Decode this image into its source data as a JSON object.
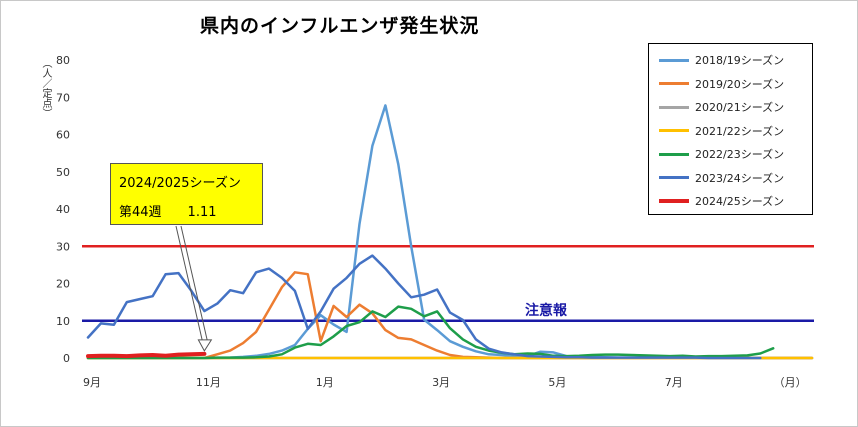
{
  "chart_data": {
    "type": "line",
    "title": "県内のインフルエンザ発生状況",
    "ylabel": "（人／定点）",
    "ylim": [
      0,
      80
    ],
    "y_ticks": [
      0,
      10,
      20,
      30,
      40,
      50,
      60,
      70,
      80
    ],
    "x_tick_labels": [
      "9月",
      "11月",
      "1月",
      "3月",
      "5月",
      "7月",
      "（月）"
    ],
    "x_tick_weeks": [
      0,
      9,
      18,
      27,
      36,
      45,
      54
    ],
    "week_count": 57,
    "grid": false,
    "legend_position": "top-right",
    "series": [
      {
        "name": "2018/19シーズン",
        "color": "#5b9bd5",
        "width": 2.5,
        "values": [
          0,
          0,
          0,
          0,
          0,
          0,
          0,
          0,
          0,
          0,
          0,
          0.1,
          0.3,
          0.6,
          1.1,
          2,
          3.5,
          7.8,
          11.5,
          9,
          7,
          36,
          57,
          67.8,
          52,
          30,
          10.3,
          7.5,
          4.5,
          3,
          1.8,
          1,
          0.8,
          0.6,
          0.5,
          1.7,
          1.5,
          0.5,
          0.3,
          0.2,
          0.2,
          0.1,
          0.1,
          0.1,
          0.1,
          0.1,
          0.1,
          0.1,
          0,
          0,
          0,
          0,
          0,
          0,
          0,
          0,
          0
        ]
      },
      {
        "name": "2019/20シーズン",
        "color": "#ed7d31",
        "width": 2.5,
        "values": [
          0,
          0,
          0,
          0,
          0,
          0,
          0,
          0,
          0,
          0,
          1,
          2,
          4,
          7,
          13,
          19,
          23,
          22.5,
          4.5,
          14,
          11,
          14.3,
          12,
          7.5,
          5.4,
          5,
          3.5,
          2,
          0.8,
          0.3,
          0.2,
          0.1,
          0,
          0,
          0,
          0,
          0,
          0,
          0,
          0,
          0,
          0,
          0,
          0,
          0,
          0,
          0,
          0,
          0,
          0,
          0,
          0,
          0,
          0,
          0,
          0,
          0
        ]
      },
      {
        "name": "2020/21シーズン",
        "color": "#a5a5a5",
        "width": 2.5,
        "values": [
          0,
          0,
          0,
          0,
          0,
          0,
          0,
          0,
          0,
          0,
          0,
          0,
          0,
          0,
          0,
          0,
          0,
          0,
          0,
          0,
          0,
          0,
          0,
          0,
          0,
          0,
          0,
          0,
          0,
          0,
          0,
          0,
          0,
          0,
          0,
          0,
          0,
          0,
          0,
          0,
          0,
          0,
          0,
          0,
          0,
          0,
          0,
          0,
          0,
          0,
          0,
          0,
          0,
          0,
          0,
          0,
          0
        ]
      },
      {
        "name": "2021/22シーズン",
        "color": "#ffc000",
        "width": 2.5,
        "values": [
          0,
          0,
          0,
          0,
          0,
          0,
          0,
          0,
          0,
          0,
          0,
          0,
          0,
          0,
          0,
          0,
          0,
          0,
          0,
          0,
          0,
          0,
          0,
          0,
          0,
          0,
          0,
          0,
          0,
          0,
          0,
          0,
          0,
          0,
          0,
          0,
          0,
          0,
          0,
          0,
          0,
          0,
          0,
          0,
          0,
          0,
          0,
          0,
          0,
          0,
          0,
          0,
          0,
          0,
          0,
          0,
          0
        ]
      },
      {
        "name": "2022/23シーズン",
        "color": "#1e9e4a",
        "width": 2.5,
        "values": [
          0,
          0,
          0,
          0,
          0,
          0,
          0,
          0,
          0,
          0,
          0.1,
          0.1,
          0.1,
          0.2,
          0.4,
          1,
          2.8,
          3.8,
          3.5,
          5.8,
          8.6,
          9.6,
          12.5,
          11,
          13.8,
          13.2,
          11.2,
          12.5,
          8,
          5,
          3,
          2,
          1.4,
          1,
          1.2,
          1.1,
          0.6,
          0.5,
          0.6,
          0.8,
          0.9,
          0.9,
          0.8,
          0.7,
          0.6,
          0.5,
          0.6,
          0.4,
          0.5,
          0.5,
          0.6,
          0.7,
          1.2,
          2.6
        ]
      },
      {
        "name": "2023/24シーズン",
        "color": "#4472c4",
        "width": 2.5,
        "values": [
          5.5,
          9.3,
          8.9,
          15,
          15.8,
          16.6,
          22.5,
          22.8,
          18,
          12.6,
          14.6,
          18.2,
          17.4,
          23,
          24,
          21.5,
          18,
          7.8,
          12.5,
          18.6,
          21.5,
          25.3,
          27.5,
          24,
          20,
          16.3,
          17,
          18.4,
          12.2,
          10.2,
          5,
          2.5,
          1.5,
          1,
          0.5,
          0.4,
          0.3,
          0.2,
          0.2,
          0.1,
          0.1,
          0.1,
          0.1,
          0.1,
          0.1,
          0.1,
          0.1,
          0.1,
          0,
          0,
          0,
          0,
          0
        ]
      },
      {
        "name": "2024/25シーズン",
        "color": "#e02020",
        "width": 4,
        "values": [
          0.5,
          0.6,
          0.6,
          0.5,
          0.7,
          0.8,
          0.6,
          0.9,
          1,
          1.11
        ]
      }
    ],
    "reference_lines": [
      {
        "value": 30,
        "color": "#e02020"
      },
      {
        "value": 10,
        "label": "注意報",
        "color": "#1a1aa6"
      }
    ],
    "annotation": {
      "line1": "2024/2025シーズン",
      "line2_week": "第44週",
      "line2_value": "1.11",
      "target_week": 9
    }
  }
}
